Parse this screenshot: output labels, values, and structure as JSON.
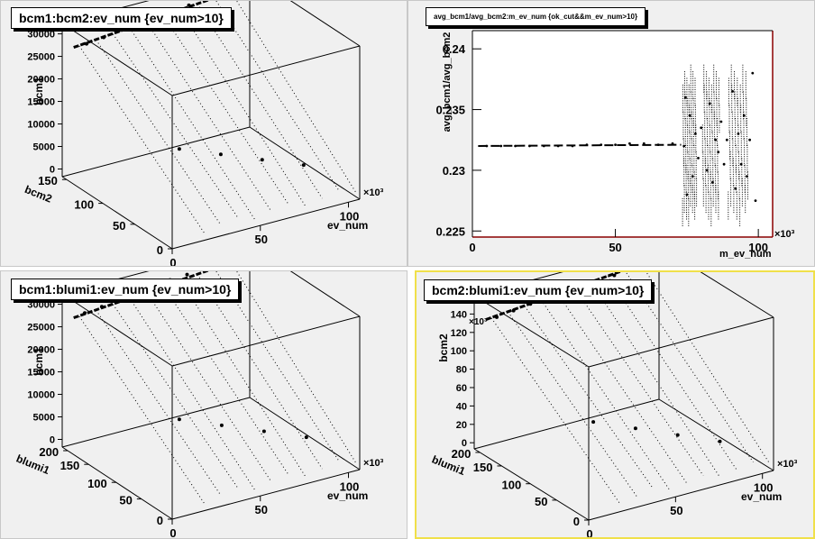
{
  "pads": [
    {
      "title": "bcm1:bcm2:ev_num {ev_num>10}",
      "zlabel": "bcm1",
      "ylabel": "bcm2",
      "xlabel": "ev_num",
      "z_ticks": [
        "0",
        "5000",
        "10000",
        "15000",
        "20000",
        "25000",
        "30000"
      ],
      "y_ticks": [
        "0",
        "50",
        "100",
        "150"
      ],
      "x_ticks": [
        "0",
        "50",
        "100"
      ],
      "x_exp": "×10³"
    },
    {
      "title": "avg_bcm1/avg_bcm2:m_ev_num {ok_cut&&m_ev_num>10}",
      "ylabel": "avg_bcm1/avg_bcm2",
      "xlabel": "m_ev_num",
      "y_ticks": [
        "0.225",
        "0.23",
        "0.235",
        "0.24"
      ],
      "x_ticks": [
        "0",
        "50",
        "100"
      ],
      "x_exp": "×10³"
    },
    {
      "title": "bcm1:blumi1:ev_num {ev_num>10}",
      "zlabel": "bcm1",
      "ylabel": "blumi1",
      "xlabel": "ev_num",
      "z_ticks": [
        "0",
        "5000",
        "10000",
        "15000",
        "20000",
        "25000",
        "30000"
      ],
      "y_ticks": [
        "0",
        "50",
        "100",
        "150",
        "200"
      ],
      "x_ticks": [
        "0",
        "50",
        "100"
      ],
      "x_exp": "×10³"
    },
    {
      "title": "bcm2:blumi1:ev_num {ev_num>10}",
      "zlabel": "bcm2",
      "z_exp": "×10³",
      "ylabel": "blumi1",
      "xlabel": "ev_num",
      "z_ticks": [
        "0",
        "20",
        "40",
        "60",
        "80",
        "100",
        "120",
        "140"
      ],
      "y_ticks": [
        "0",
        "50",
        "100",
        "150",
        "200"
      ],
      "x_ticks": [
        "0",
        "50",
        "100"
      ],
      "x_exp": "×10³"
    }
  ],
  "chart_data": [
    {
      "type": "scatter",
      "title": "bcm1:bcm2:ev_num {ev_num>10}",
      "xlabel": "ev_num",
      "ylabel": "bcm2",
      "zlabel": "bcm1",
      "xlim": [
        0,
        110000
      ],
      "ylim": [
        0,
        150
      ],
      "zlim": [
        0,
        32000
      ],
      "points": [
        [
          10000,
          140,
          27800
        ],
        [
          20000,
          140,
          28200
        ],
        [
          30000,
          140,
          28800
        ],
        [
          40000,
          140,
          29200
        ],
        [
          50000,
          140,
          29600
        ],
        [
          60000,
          140,
          30000
        ],
        [
          70000,
          140,
          30200
        ],
        [
          80000,
          140,
          30400
        ],
        [
          90000,
          140,
          30600
        ],
        [
          100000,
          140,
          31000
        ],
        [
          30000,
          60,
          12000
        ],
        [
          50000,
          50,
          10000
        ],
        [
          70000,
          40,
          8000
        ],
        [
          90000,
          30,
          6000
        ]
      ]
    },
    {
      "type": "scatter",
      "title": "avg_bcm1/avg_bcm2:m_ev_num {ok_cut&&m_ev_num>10}",
      "xlabel": "m_ev_num",
      "ylabel": "avg_bcm1/avg_bcm2",
      "xlim": [
        0,
        105000
      ],
      "ylim": [
        0.2245,
        0.2415
      ],
      "points": [
        [
          5000,
          0.232
        ],
        [
          10000,
          0.232
        ],
        [
          15000,
          0.232
        ],
        [
          20000,
          0.232
        ],
        [
          25000,
          0.232
        ],
        [
          30000,
          0.232
        ],
        [
          35000,
          0.232
        ],
        [
          40000,
          0.2321
        ],
        [
          45000,
          0.2321
        ],
        [
          50000,
          0.2321
        ],
        [
          55000,
          0.2322
        ],
        [
          60000,
          0.2322
        ],
        [
          65000,
          0.2321
        ],
        [
          70000,
          0.2322
        ],
        [
          74000,
          0.232
        ],
        [
          74500,
          0.236
        ],
        [
          75000,
          0.228
        ],
        [
          76000,
          0.2345
        ],
        [
          77000,
          0.2295
        ],
        [
          78000,
          0.233
        ],
        [
          79000,
          0.231
        ],
        [
          80000,
          0.2335
        ],
        [
          82000,
          0.23
        ],
        [
          83000,
          0.2355
        ],
        [
          84000,
          0.229
        ],
        [
          85000,
          0.2325
        ],
        [
          86000,
          0.2315
        ],
        [
          87000,
          0.234
        ],
        [
          88000,
          0.2305
        ],
        [
          89000,
          0.2325
        ],
        [
          91000,
          0.2365
        ],
        [
          92000,
          0.2285
        ],
        [
          93000,
          0.233
        ],
        [
          94000,
          0.2305
        ],
        [
          95000,
          0.2345
        ],
        [
          96000,
          0.2295
        ],
        [
          97000,
          0.2325
        ],
        [
          98000,
          0.238
        ],
        [
          99000,
          0.2275
        ]
      ]
    },
    {
      "type": "scatter",
      "title": "bcm1:blumi1:ev_num {ev_num>10}",
      "xlabel": "ev_num",
      "ylabel": "blumi1",
      "zlabel": "bcm1",
      "xlim": [
        0,
        110000
      ],
      "ylim": [
        0,
        200
      ],
      "zlim": [
        0,
        32000
      ],
      "points": [
        [
          10000,
          190,
          27800
        ],
        [
          20000,
          190,
          28200
        ],
        [
          30000,
          190,
          28800
        ],
        [
          40000,
          190,
          29200
        ],
        [
          50000,
          190,
          29600
        ],
        [
          60000,
          190,
          30000
        ],
        [
          70000,
          190,
          30200
        ],
        [
          80000,
          190,
          30400
        ],
        [
          90000,
          190,
          30600
        ],
        [
          100000,
          190,
          31000
        ],
        [
          30000,
          80,
          12000
        ],
        [
          50000,
          65,
          10000
        ],
        [
          70000,
          50,
          8000
        ],
        [
          90000,
          35,
          6000
        ]
      ]
    },
    {
      "type": "scatter",
      "title": "bcm2:blumi1:ev_num {ev_num>10}",
      "xlabel": "ev_num",
      "ylabel": "blumi1",
      "zlabel": "bcm2",
      "xlim": [
        0,
        110000
      ],
      "ylim": [
        0,
        200
      ],
      "zlim": [
        0,
        150000
      ],
      "points": [
        [
          10000,
          190,
          128000
        ],
        [
          20000,
          190,
          130000
        ],
        [
          30000,
          190,
          132000
        ],
        [
          40000,
          190,
          134000
        ],
        [
          50000,
          190,
          135000
        ],
        [
          60000,
          190,
          136000
        ],
        [
          70000,
          190,
          137000
        ],
        [
          80000,
          190,
          138000
        ],
        [
          90000,
          190,
          139000
        ],
        [
          100000,
          190,
          140000
        ],
        [
          30000,
          80,
          55000
        ],
        [
          50000,
          65,
          45000
        ],
        [
          70000,
          50,
          35000
        ],
        [
          90000,
          35,
          25000
        ]
      ]
    }
  ]
}
